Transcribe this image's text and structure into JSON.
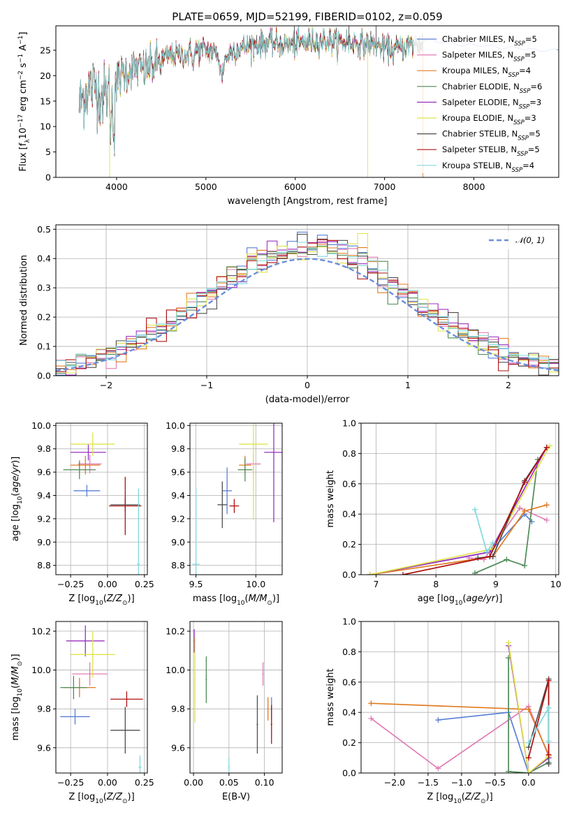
{
  "title": "PLATE=0659, MJD=52199, FIBERID=0102, z=0.059",
  "colors": {
    "Chabrier MILES": "#5a7fd6",
    "Salpeter MILES": "#e17db4",
    "Kroupa MILES": "#e07b22",
    "Chabrier ELODIE": "#4f8a57",
    "Salpeter ELODIE": "#9b30c0",
    "Kroupa ELODIE": "#dfe34a",
    "Chabrier STELIB": "#4d4d4d",
    "Salpeter STELIB": "#b01010",
    "Kroupa STELIB": "#80d9dc",
    "gauss": "#6a8fdc",
    "grid": "#b0b0b0"
  },
  "chart_data": [
    {
      "id": "spectrum",
      "type": "line",
      "title": "PLATE=0659, MJD=52199, FIBERID=0102, z=0.059",
      "xlabel": "wavelength [Angstrom, rest frame]",
      "ylabel": "Flux [f_λ 10^-17 erg cm^-2 s^-1 A^-1]",
      "xlim": [
        3320,
        8950
      ],
      "ylim": [
        0,
        29.8
      ],
      "xticks": [
        "4000",
        "5000",
        "6000",
        "7000",
        "8000"
      ],
      "yticks": [
        "0",
        "5",
        "10",
        "15",
        "20",
        "25"
      ],
      "grid": false,
      "legend_position": "right",
      "series": [
        {
          "name": "Chabrier MILES, N_SSP=5"
        },
        {
          "name": "Salpeter MILES, N_SSP=5"
        },
        {
          "name": "Kroupa MILES, N_SSP=4"
        },
        {
          "name": "Chabrier ELODIE, N_SSP=6"
        },
        {
          "name": "Salpeter ELODIE, N_SSP=3"
        },
        {
          "name": "Kroupa ELODIE, N_SSP=3"
        },
        {
          "name": "Chabrier STELIB, N_SSP=5"
        },
        {
          "name": "Salpeter STELIB, N_SSP=5"
        },
        {
          "name": "Kroupa STELIB, N_SSP=4"
        }
      ],
      "continuum": {
        "x": [
          3580,
          3650,
          3750,
          3850,
          3950,
          4000,
          4100,
          4200,
          4300,
          4400,
          4500,
          4600,
          4700,
          4800,
          4900,
          5000,
          5100,
          5200,
          5300,
          5500,
          5700,
          5900,
          6100,
          6300,
          6500,
          6700,
          6900,
          7100,
          7300,
          7500,
          7700,
          7900,
          8100,
          8300,
          8500,
          8700,
          8900
        ],
        "y": [
          14,
          17,
          18,
          16,
          17,
          19,
          21,
          21.5,
          21,
          22,
          23,
          24,
          24,
          24,
          25,
          25,
          24.5,
          23,
          25,
          26,
          26.5,
          26,
          26.5,
          27,
          26.5,
          26.5,
          26,
          25,
          26,
          27,
          26.5,
          26,
          26,
          25.5,
          25.5,
          25,
          25
        ]
      }
    },
    {
      "id": "residuals",
      "type": "step",
      "xlabel": "(data-model)/error",
      "ylabel": "Normed distribution",
      "xlim": [
        -2.5,
        2.5
      ],
      "ylim": [
        0,
        0.515
      ],
      "xticks": [
        "−2",
        "−1",
        "0",
        "1",
        "2"
      ],
      "yticks": [
        "0.0",
        "0.1",
        "0.2",
        "0.3",
        "0.4",
        "0.5"
      ],
      "grid": true,
      "legend_position": "top-right",
      "legend": "N(0,1)",
      "gauss_label": "𝒩(0, 1)",
      "bin_width": 0.1
    },
    {
      "id": "age-vs-Z",
      "type": "errorbar",
      "xlabel": "Z [log10(Z/Z⊙)]",
      "ylabel": "age [log10(age/yr)]",
      "xlim": [
        -0.35,
        0.27
      ],
      "ylim": [
        8.72,
        10.02
      ],
      "xticks": [
        "−0.25",
        "0.00",
        "0.25"
      ],
      "yticks": [
        "8.8",
        "9.0",
        "9.2",
        "9.4",
        "9.6",
        "9.8",
        "10.0"
      ],
      "grid": true,
      "points": [
        {
          "series": "Chabrier MILES",
          "x": -0.14,
          "xerr": 0.09,
          "y": 9.44,
          "yerr": 0.05
        },
        {
          "series": "Salpeter MILES",
          "x": -0.12,
          "xerr": 0.08,
          "y": 9.67,
          "yerr": 0.08
        },
        {
          "series": "Kroupa MILES",
          "x": -0.15,
          "xerr": 0.1,
          "y": 9.66,
          "yerr": 0.08
        },
        {
          "series": "Chabrier ELODIE",
          "x": -0.19,
          "xerr": 0.11,
          "y": 9.62,
          "yerr": 0.08
        },
        {
          "series": "Salpeter ELODIE",
          "x": -0.13,
          "xerr": 0.12,
          "y": 9.77,
          "yerr": 0.07
        },
        {
          "series": "Kroupa ELODIE",
          "x": -0.1,
          "xerr": 0.15,
          "y": 9.84,
          "yerr": 0.1
        },
        {
          "series": "Chabrier STELIB",
          "x": 0.12,
          "xerr": 0.1,
          "y": 9.32,
          "yerr": 0.06
        },
        {
          "series": "Salpeter STELIB",
          "x": 0.12,
          "xerr": 0.11,
          "y": 9.31,
          "yerr": 0.25
        },
        {
          "series": "Kroupa STELIB",
          "x": 0.21,
          "xerr": 0.01,
          "y": 8.81,
          "yerr": 0.65
        }
      ]
    },
    {
      "id": "age-vs-mass",
      "type": "errorbar",
      "xlabel": "mass [log10(M/M⊙)]",
      "xlim": [
        9.45,
        10.22
      ],
      "ylim": [
        8.72,
        10.02
      ],
      "xticks": [
        "9.5",
        "10.0"
      ],
      "yticks": [
        "8.8",
        "9.0",
        "9.2",
        "9.4",
        "9.6",
        "9.8",
        "10.0"
      ],
      "grid": true,
      "points": [
        {
          "series": "Chabrier MILES",
          "x": 9.76,
          "xerr": 0.04,
          "y": 9.44,
          "yerr": 0.2
        },
        {
          "series": "Salpeter MILES",
          "x": 9.98,
          "xerr": 0.06,
          "y": 9.67,
          "yerr": 0.1
        },
        {
          "series": "Kroupa MILES",
          "x": 9.91,
          "xerr": 0.05,
          "y": 9.66,
          "yerr": 0.08
        },
        {
          "series": "Chabrier ELODIE",
          "x": 9.91,
          "xerr": 0.06,
          "y": 9.62,
          "yerr": 0.1
        },
        {
          "series": "Salpeter ELODIE",
          "x": 10.15,
          "xerr": 0.08,
          "y": 9.77,
          "yerr": 0.6
        },
        {
          "series": "Kroupa ELODIE",
          "x": 9.98,
          "xerr": 0.12,
          "y": 9.84,
          "yerr": 0.65
        },
        {
          "series": "Chabrier STELIB",
          "x": 9.72,
          "xerr": 0.04,
          "y": 9.32,
          "yerr": 0.2
        },
        {
          "series": "Salpeter STELIB",
          "x": 9.82,
          "xerr": 0.04,
          "y": 9.31,
          "yerr": 0.06
        },
        {
          "series": "Kroupa STELIB",
          "x": 9.5,
          "xerr": 0.03,
          "y": 8.81,
          "yerr": 0.65
        }
      ]
    },
    {
      "id": "mass-weight-vs-age",
      "type": "line",
      "xlabel": "age [log10(age/yr)]",
      "ylabel": "mass weight",
      "xlim": [
        6.75,
        10.05
      ],
      "ylim": [
        0,
        1.0
      ],
      "xticks": [
        "7",
        "8",
        "9",
        "10"
      ],
      "yticks": [
        "0.0",
        "0.2",
        "0.4",
        "0.6",
        "0.8",
        "1.0"
      ],
      "grid": true,
      "series": [
        {
          "series": "Chabrier MILES",
          "x": [
            6.9,
            8.9,
            9.48,
            9.6
          ],
          "y": [
            0,
            0.15,
            0.4,
            0.35
          ]
        },
        {
          "series": "Salpeter MILES",
          "x": [
            8.55,
            8.8,
            9.4,
            9.85
          ],
          "y": [
            0.11,
            0.1,
            0.44,
            0.36
          ]
        },
        {
          "series": "Kroupa MILES",
          "x": [
            6.9,
            8.95,
            9.48,
            9.85
          ],
          "y": [
            0,
            0.12,
            0.42,
            0.46
          ]
        },
        {
          "series": "Chabrier ELODIE",
          "x": [
            8.65,
            9.18,
            9.48,
            9.7
          ],
          "y": [
            0.01,
            0.1,
            0.06,
            0.76
          ]
        },
        {
          "series": "Salpeter ELODIE",
          "x": [
            6.9,
            8.9,
            9.85
          ],
          "y": [
            0,
            0.15,
            0.84
          ]
        },
        {
          "series": "Kroupa ELODIE",
          "x": [
            6.9,
            8.95,
            9.9
          ],
          "y": [
            0,
            0.17,
            0.85
          ]
        },
        {
          "series": "Chabrier STELIB",
          "x": [
            8.7,
            8.95,
            9.48,
            9.85
          ],
          "y": [
            0.11,
            0.12,
            0.62,
            0.84
          ]
        },
        {
          "series": "Salpeter STELIB",
          "x": [
            7.45,
            8.9,
            9.48,
            9.85
          ],
          "y": [
            0,
            0.12,
            0.61,
            0.84
          ]
        },
        {
          "series": "Kroupa STELIB",
          "x": [
            8.65,
            8.85,
            8.95
          ],
          "y": [
            0.43,
            0.15,
            0.21
          ]
        }
      ]
    },
    {
      "id": "mass-vs-Z",
      "type": "errorbar",
      "xlabel": "Z [log10(Z/Z⊙)]",
      "ylabel": "mass [log10(M/M⊙)]",
      "xlim": [
        -0.35,
        0.27
      ],
      "ylim": [
        9.47,
        10.25
      ],
      "xticks": [
        "−0.25",
        "0.00",
        "0.25"
      ],
      "yticks": [
        "9.6",
        "9.8",
        "10.0",
        "10.2"
      ],
      "grid": true,
      "points": [
        {
          "series": "Chabrier MILES",
          "x": -0.22,
          "xerr": 0.1,
          "y": 9.76,
          "yerr": 0.04
        },
        {
          "series": "Salpeter MILES",
          "x": -0.12,
          "xerr": 0.12,
          "y": 9.98,
          "yerr": 0.06
        },
        {
          "series": "Kroupa MILES",
          "x": -0.19,
          "xerr": 0.11,
          "y": 9.91,
          "yerr": 0.05
        },
        {
          "series": "Chabrier ELODIE",
          "x": -0.23,
          "xerr": 0.09,
          "y": 9.91,
          "yerr": 0.06
        },
        {
          "series": "Salpeter ELODIE",
          "x": -0.15,
          "xerr": 0.13,
          "y": 10.15,
          "yerr": 0.08
        },
        {
          "series": "Kroupa ELODIE",
          "x": -0.1,
          "xerr": 0.15,
          "y": 10.08,
          "yerr": 0.12
        },
        {
          "series": "Chabrier STELIB",
          "x": 0.12,
          "xerr": 0.1,
          "y": 9.69,
          "yerr": 0.12
        },
        {
          "series": "Salpeter STELIB",
          "x": 0.13,
          "xerr": 0.11,
          "y": 9.85,
          "yerr": 0.04
        },
        {
          "series": "Kroupa STELIB",
          "x": 0.22,
          "xerr": 0.01,
          "y": 9.5,
          "yerr": 0.06
        }
      ]
    },
    {
      "id": "mass-vs-EBV",
      "type": "errorbar",
      "xlabel": "E(B-V)",
      "xlim": [
        -0.005,
        0.125
      ],
      "ylim": [
        9.47,
        10.25
      ],
      "xticks": [
        "0.00",
        "0.05",
        "0.10"
      ],
      "yticks": [
        "9.6",
        "9.8",
        "10.0",
        "10.2"
      ],
      "grid": true,
      "points": [
        {
          "series": "Chabrier MILES",
          "x": 0.11,
          "xerr": 0.001,
          "y": 9.8,
          "yerr": 0.06
        },
        {
          "series": "Salpeter MILES",
          "x": 0.098,
          "xerr": 0.001,
          "y": 9.98,
          "yerr": 0.06
        },
        {
          "series": "Kroupa MILES",
          "x": 0.105,
          "xerr": 0.001,
          "y": 9.8,
          "yerr": 0.06
        },
        {
          "series": "Chabrier ELODIE",
          "x": 0.018,
          "xerr": 0.001,
          "y": 9.95,
          "yerr": 0.12
        },
        {
          "series": "Salpeter ELODIE",
          "x": 0.001,
          "xerr": 0.001,
          "y": 10.15,
          "yerr": 0.06
        },
        {
          "series": "Kroupa ELODIE",
          "x": 0.002,
          "xerr": 0.001,
          "y": 9.95,
          "yerr": 0.22
        },
        {
          "series": "Chabrier STELIB",
          "x": 0.09,
          "xerr": 0.001,
          "y": 9.72,
          "yerr": 0.15
        },
        {
          "series": "Salpeter STELIB",
          "x": 0.11,
          "xerr": 0.001,
          "y": 9.72,
          "yerr": 0.1
        },
        {
          "series": "Kroupa STELIB",
          "x": 0.05,
          "xerr": 0.001,
          "y": 9.5,
          "yerr": 0.05
        }
      ]
    },
    {
      "id": "mass-weight-vs-Z",
      "type": "line",
      "xlabel": "Z [log10(Z/Z⊙)]",
      "ylabel": "mass weight",
      "xlim": [
        -2.5,
        0.45
      ],
      "ylim": [
        0,
        1.0
      ],
      "xticks": [
        "−2.0",
        "−1.5",
        "−1.0",
        "−0.5",
        "0.0"
      ],
      "yticks": [
        "0.0",
        "0.2",
        "0.4",
        "0.6",
        "0.8",
        "1.0"
      ],
      "grid": true,
      "series": [
        {
          "series": "Chabrier MILES",
          "x": [
            -1.35,
            -0.3,
            0.0,
            0.3
          ],
          "y": [
            0.35,
            0.4,
            0.0,
            0.1
          ]
        },
        {
          "series": "Salpeter MILES",
          "x": [
            -2.35,
            -1.35,
            0.0,
            0.3
          ],
          "y": [
            0.36,
            0.03,
            0.44,
            0.11
          ]
        },
        {
          "series": "Kroupa MILES",
          "x": [
            -2.35,
            0.0,
            0.3
          ],
          "y": [
            0.46,
            0.42,
            0.12
          ]
        },
        {
          "series": "Chabrier ELODIE",
          "x": [
            -0.3,
            -0.3,
            0.0,
            0.3
          ],
          "y": [
            0.76,
            0.01,
            0.0,
            0.07
          ]
        },
        {
          "series": "Salpeter ELODIE",
          "x": [
            -0.3,
            0.0,
            0.3
          ],
          "y": [
            0.84,
            0.0,
            0.1
          ]
        },
        {
          "series": "Kroupa ELODIE",
          "x": [
            -0.3,
            0.0,
            0.3
          ],
          "y": [
            0.86,
            0.0,
            0.11
          ]
        },
        {
          "series": "Chabrier STELIB",
          "x": [
            0.0,
            0.3,
            0.3
          ],
          "y": [
            0.17,
            0.62,
            0.06
          ]
        },
        {
          "series": "Salpeter STELIB",
          "x": [
            0.0,
            0.3,
            0.3
          ],
          "y": [
            0.1,
            0.61,
            0.12
          ]
        },
        {
          "series": "Kroupa STELIB",
          "x": [
            0.0,
            0.3,
            0.3
          ],
          "y": [
            0.2,
            0.43,
            0.21
          ]
        }
      ]
    }
  ]
}
